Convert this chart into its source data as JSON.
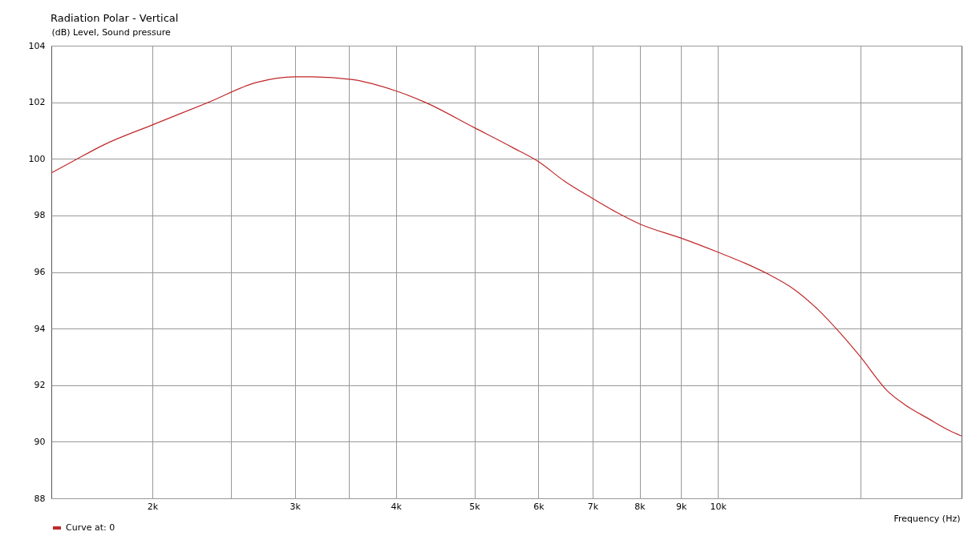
{
  "chart_data": {
    "type": "line",
    "title": "Radiation Polar - Vertical",
    "ylabel": "(dB)  Level, Sound pressure",
    "xlabel": "Frequency  (Hz)",
    "log": "x",
    "grid": true,
    "legend": "bottom left",
    "marker": "none",
    "line_style": "solid",
    "xlim": [
      1500,
      20000
    ],
    "xticks": [
      {
        "value": 2000,
        "label": "2k"
      },
      {
        "value": 2500,
        "label": null
      },
      {
        "value": 3000,
        "label": "3k"
      },
      {
        "value": 3500,
        "label": null
      },
      {
        "value": 4000,
        "label": "4k"
      },
      {
        "value": 5000,
        "label": "5k"
      },
      {
        "value": 6000,
        "label": "6k"
      },
      {
        "value": 7000,
        "label": "7k"
      },
      {
        "value": 8000,
        "label": "8k"
      },
      {
        "value": 9000,
        "label": "9k"
      },
      {
        "value": 10000,
        "label": "10k"
      },
      {
        "value": 15000,
        "label": null
      }
    ],
    "ylim": [
      88,
      104
    ],
    "yticks": [
      88,
      90,
      92,
      94,
      96,
      98,
      100,
      102,
      104
    ],
    "x": [
      1500,
      1592,
      1743,
      2000,
      2347,
      2690,
      3000,
      3154,
      3536,
      4000,
      4344,
      5000,
      5574,
      6000,
      6468,
      7000,
      7502,
      8000,
      9000,
      10000,
      10820,
      11580,
      12400,
      13260,
      14200,
      15000,
      16190,
      17040,
      18240,
      19310,
      20000
    ],
    "series": [
      {
        "name": "Curve at: 0",
        "color": "#c0282a",
        "values": [
          99.5,
          99.9,
          100.5,
          101.2,
          102.0,
          102.7,
          102.9,
          102.9,
          102.8,
          102.4,
          102.0,
          101.1,
          100.4,
          99.9,
          99.2,
          98.6,
          98.1,
          97.7,
          97.2,
          96.7,
          96.3,
          95.9,
          95.4,
          94.7,
          93.8,
          93.0,
          91.8,
          91.3,
          90.8,
          90.4,
          90.2
        ]
      }
    ]
  }
}
